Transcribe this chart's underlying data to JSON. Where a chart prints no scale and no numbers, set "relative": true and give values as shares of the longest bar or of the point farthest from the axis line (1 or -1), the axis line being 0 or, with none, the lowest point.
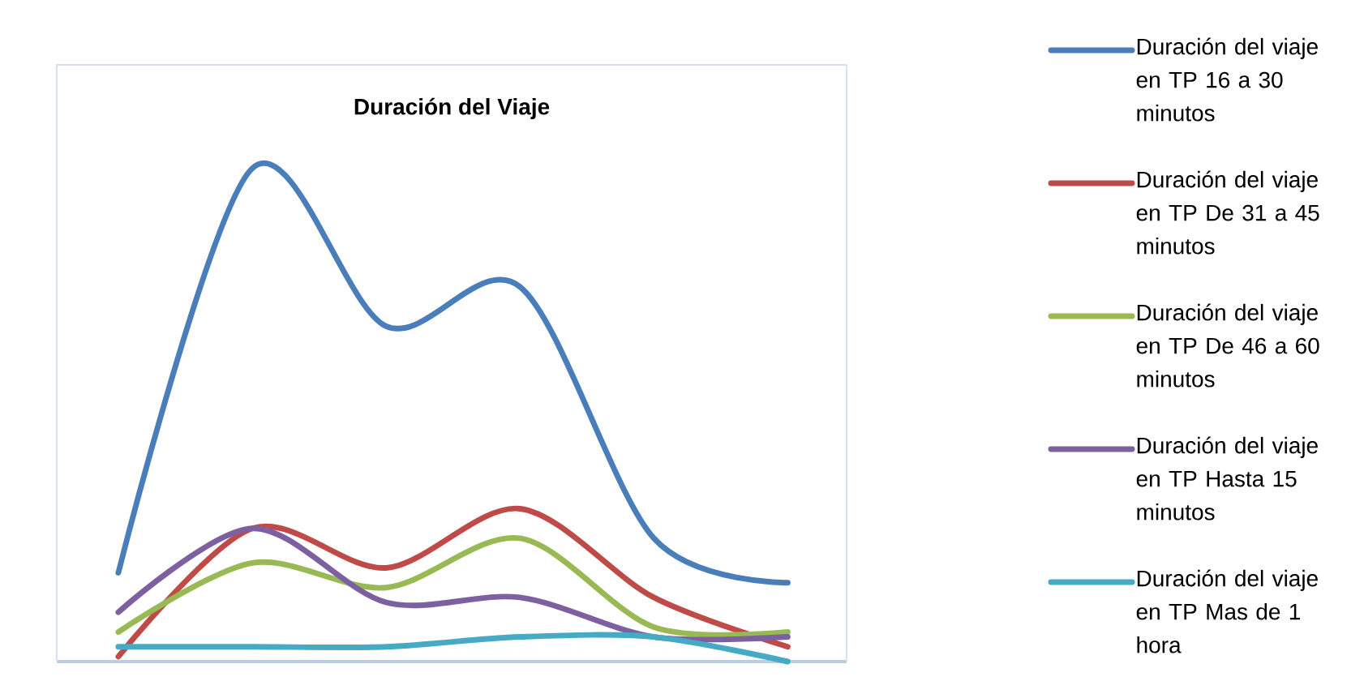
{
  "chart_data": {
    "type": "line",
    "title": "Duración del Viaje",
    "relative": true,
    "categories": [
      null,
      null,
      null,
      null,
      null,
      null
    ],
    "series": [
      {
        "name": "Duración del viaje en TP 16 a 30 minutos",
        "color": "#4a7ebb",
        "values": [
          0.18,
          1,
          0.68,
          0.76,
          0.25,
          0.16
        ]
      },
      {
        "name": "Duración del viaje en TP De 31 a 45 minutos",
        "color": "#be4b48",
        "values": [
          0.01,
          0.27,
          0.19,
          0.31,
          0.13,
          0.03
        ]
      },
      {
        "name": "Duración del viaje en TP De 46 a 60 minutos",
        "color": "#98b954",
        "values": [
          0.06,
          0.2,
          0.15,
          0.25,
          0.07,
          0.06
        ]
      },
      {
        "name": "Duración del viaje en TP Hasta 15 minutos",
        "color": "#7d60a0",
        "values": [
          0.1,
          0.27,
          0.12,
          0.13,
          0.05,
          0.05
        ]
      },
      {
        "name": "Duración del viaje en TP Mas de 1 hora",
        "color": "#46aac5",
        "values": [
          0.03,
          0.03,
          0.03,
          0.05,
          0.05,
          0
        ]
      }
    ],
    "legend": "right",
    "marker": "none",
    "line_style": "solid"
  }
}
